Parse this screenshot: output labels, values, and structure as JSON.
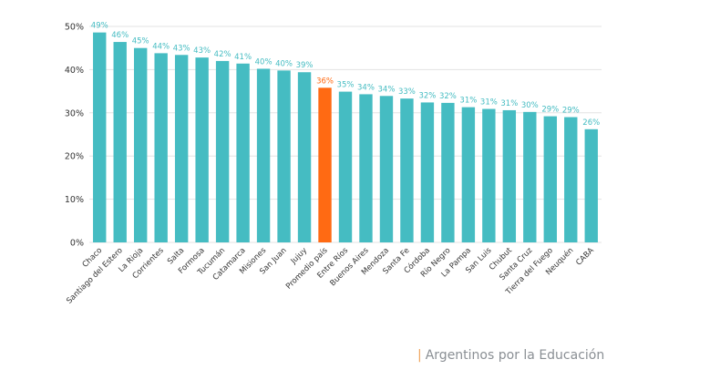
{
  "source": {
    "separator": "|",
    "text": "Argentinos por la Educación"
  },
  "colors": {
    "bar": "#45bcc2",
    "highlight": "#ff6a13",
    "value_label": "#45bcc2",
    "highlight_label": "#ff6a13",
    "grid": "#e3e3e3",
    "axis_text": "#333333"
  },
  "chart_data": {
    "type": "bar",
    "categories": [
      "Chaco",
      "Santiago del Estero",
      "La Rioja",
      "Corrientes",
      "Salta",
      "Formosa",
      "Tucumán",
      "Catamarca",
      "Misiones",
      "San Juan",
      "Jujuy",
      "Promedio país",
      "Entre Ríos",
      "Buenos Aires",
      "Mendoza",
      "Santa Fe",
      "Córdoba",
      "Río Negro",
      "La Pampa",
      "San Luis",
      "Chubut",
      "Santa Cruz",
      "Tierra del Fuego",
      "Neuquén",
      "CABA"
    ],
    "values": [
      48.6,
      46.4,
      45.0,
      43.8,
      43.4,
      42.8,
      42.0,
      41.4,
      40.2,
      39.8,
      39.4,
      35.8,
      34.9,
      34.3,
      33.9,
      33.3,
      32.4,
      32.3,
      31.3,
      30.9,
      30.6,
      30.2,
      29.2,
      29.0,
      26.2
    ],
    "value_labels": [
      "49%",
      "46%",
      "45%",
      "44%",
      "43%",
      "43%",
      "42%",
      "41%",
      "40%",
      "40%",
      "39%",
      "36%",
      "35%",
      "34%",
      "34%",
      "33%",
      "32%",
      "32%",
      "31%",
      "31%",
      "31%",
      "30%",
      "29%",
      "29%",
      "26%"
    ],
    "highlight_index": 11,
    "ylim": [
      0,
      50
    ],
    "yticks": [
      0,
      10,
      20,
      30,
      40,
      50
    ],
    "ytick_labels": [
      "0%",
      "10%",
      "20%",
      "30%",
      "40%",
      "50%"
    ],
    "grid": true,
    "title": "",
    "xlabel": "",
    "ylabel": ""
  }
}
